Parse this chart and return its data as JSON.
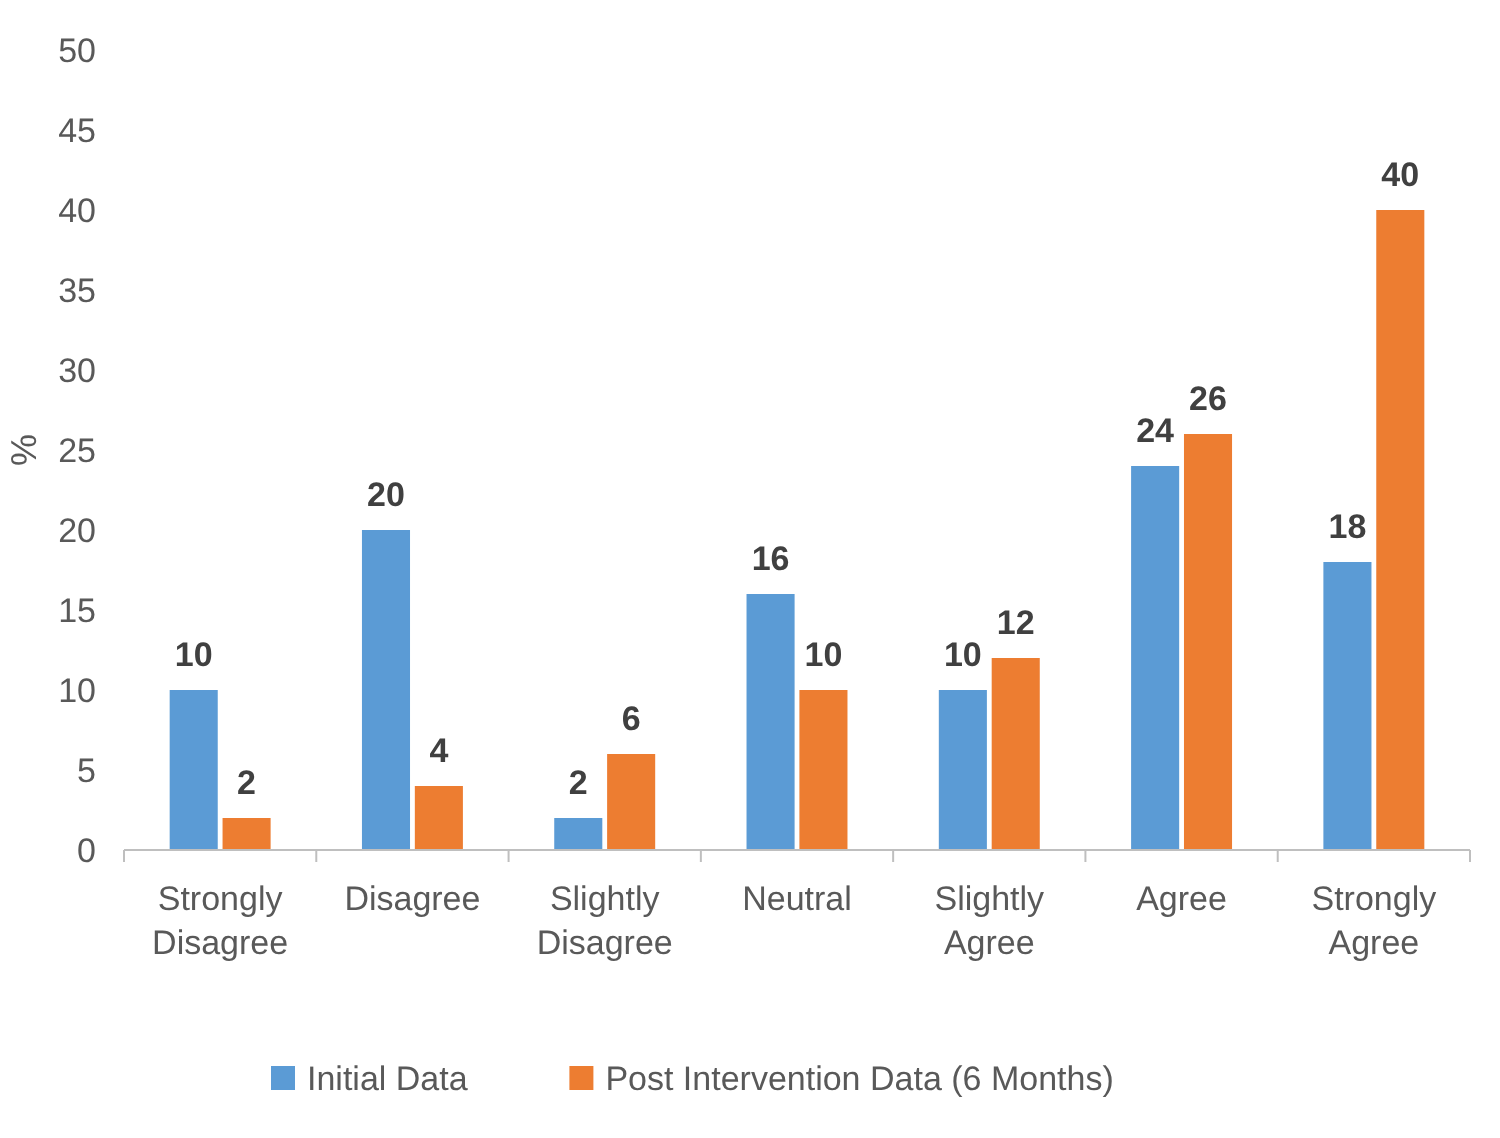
{
  "chart_data": {
    "type": "bar",
    "ylabel": "%",
    "categories": [
      "Strongly Disagree",
      "Disagree",
      "Slightly Disagree",
      "Neutral",
      "Slightly Agree",
      "Agree",
      "Strongly Agree"
    ],
    "series": [
      {
        "name": "Initial Data",
        "color": "#5b9bd5",
        "values": [
          10,
          20,
          2,
          16,
          10,
          24,
          18
        ]
      },
      {
        "name": "Post Intervention Data (6 Months)",
        "color": "#ed7d31",
        "values": [
          2,
          4,
          6,
          10,
          12,
          26,
          40
        ]
      }
    ],
    "ylim": [
      0,
      50
    ],
    "yticks": [
      0,
      5,
      10,
      15,
      20,
      25,
      30,
      35,
      40,
      45,
      50
    ],
    "grid": false,
    "legend": "bottom",
    "data_labels": true
  }
}
